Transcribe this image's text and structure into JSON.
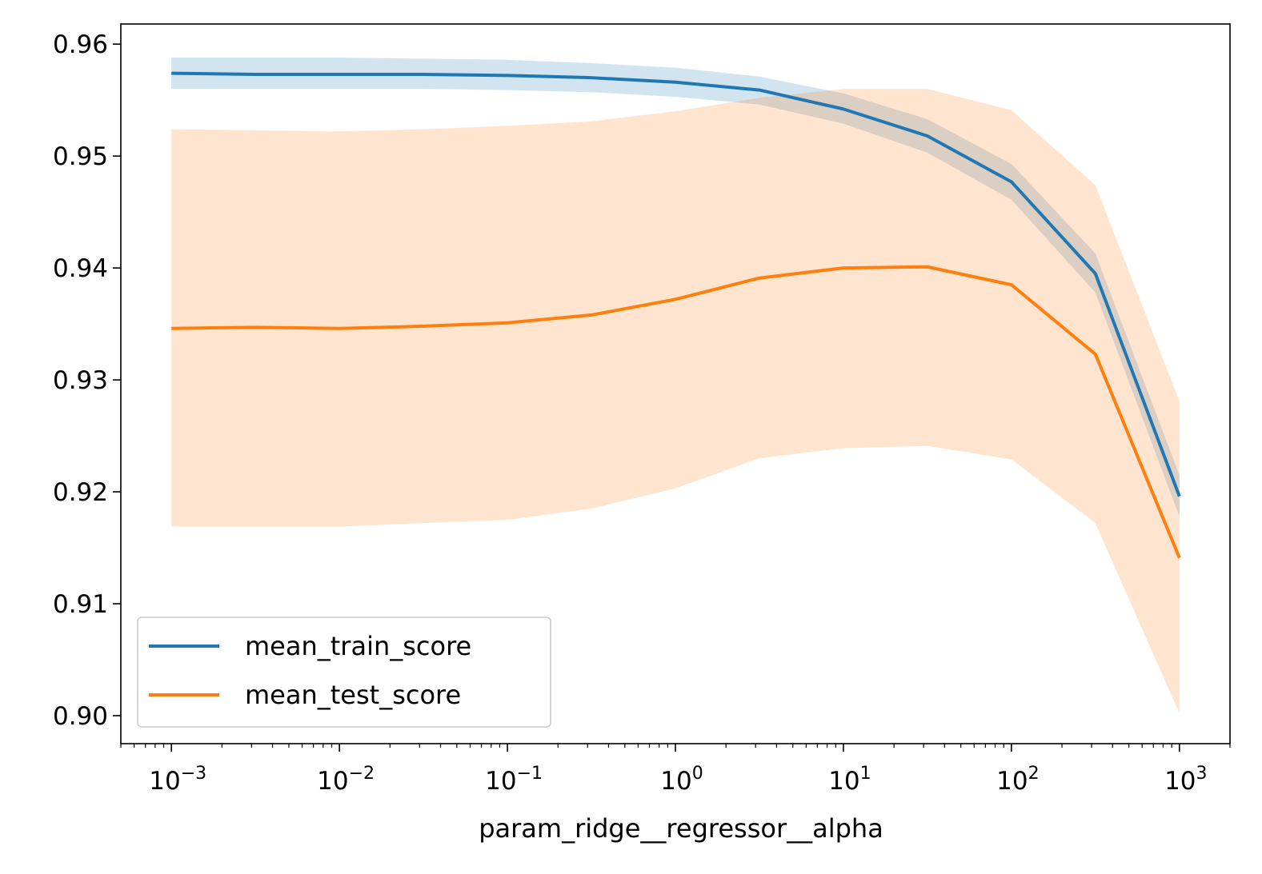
{
  "chart_data": {
    "type": "line",
    "xlabel": "param_ridge__regressor__alpha",
    "ylabel": "",
    "xscale": "log",
    "xlim": [
      0.0005,
      2000
    ],
    "ylim": [
      0.8975,
      0.9618
    ],
    "grid": false,
    "legend_position": "lower-left",
    "x": [
      0.001,
      0.00316,
      0.01,
      0.0316,
      0.1,
      0.316,
      1,
      3.16,
      10,
      31.6,
      100,
      316,
      1000
    ],
    "x_tick_labels": [
      {
        "value": 0.001,
        "base": "10",
        "exp": "−3"
      },
      {
        "value": 0.01,
        "base": "10",
        "exp": "−2"
      },
      {
        "value": 0.1,
        "base": "10",
        "exp": "−1"
      },
      {
        "value": 1,
        "base": "10",
        "exp": "0"
      },
      {
        "value": 10,
        "base": "10",
        "exp": "1"
      },
      {
        "value": 100,
        "base": "10",
        "exp": "2"
      },
      {
        "value": 1000,
        "base": "10",
        "exp": "3"
      }
    ],
    "y_tick_labels": [
      "0.90",
      "0.91",
      "0.92",
      "0.93",
      "0.94",
      "0.95",
      "0.96"
    ],
    "y_ticks": [
      0.9,
      0.91,
      0.92,
      0.93,
      0.94,
      0.95,
      0.96
    ],
    "series": [
      {
        "name": "mean_train_score",
        "color": "#1f77b4",
        "band_color": "#1f77b4",
        "values": [
          0.9574,
          0.9573,
          0.9573,
          0.9573,
          0.9572,
          0.957,
          0.9566,
          0.9559,
          0.9542,
          0.9518,
          0.9477,
          0.9395,
          0.9196
        ],
        "upper": [
          0.9588,
          0.9588,
          0.9588,
          0.9587,
          0.9586,
          0.9583,
          0.9579,
          0.9571,
          0.9556,
          0.9533,
          0.9493,
          0.9413,
          0.9215
        ],
        "lower": [
          0.956,
          0.956,
          0.956,
          0.956,
          0.9559,
          0.9557,
          0.9553,
          0.9546,
          0.9529,
          0.9503,
          0.9461,
          0.9378,
          0.9178
        ]
      },
      {
        "name": "mean_test_score",
        "color": "#ff7f0e",
        "band_color": "#ff7f0e",
        "values": [
          0.9346,
          0.9347,
          0.9346,
          0.9348,
          0.9351,
          0.9358,
          0.9372,
          0.9391,
          0.94,
          0.9401,
          0.9385,
          0.9323,
          0.9141
        ],
        "upper": [
          0.9524,
          0.9523,
          0.9522,
          0.9524,
          0.9527,
          0.9531,
          0.954,
          0.9552,
          0.956,
          0.956,
          0.9541,
          0.9474,
          0.9281
        ],
        "lower": [
          0.9169,
          0.9169,
          0.9169,
          0.9172,
          0.9175,
          0.9185,
          0.9203,
          0.923,
          0.9239,
          0.9241,
          0.9229,
          0.9172,
          0.9002
        ]
      }
    ]
  }
}
